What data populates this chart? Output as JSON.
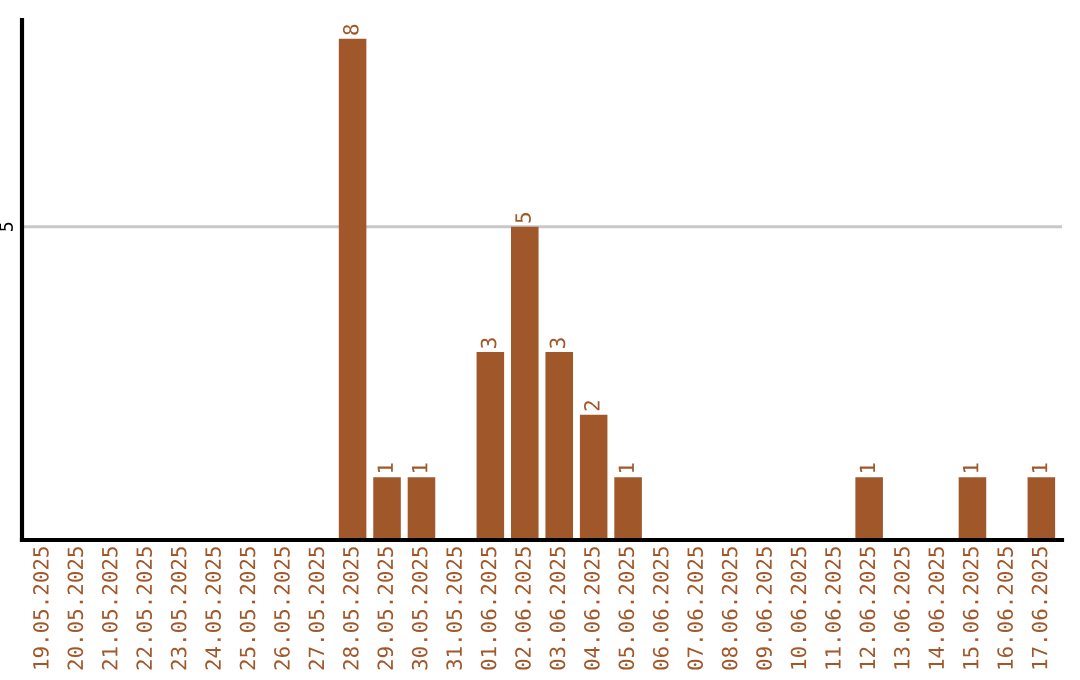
{
  "chart_data": {
    "type": "bar",
    "categories": [
      "19.05.2025",
      "20.05.2025",
      "21.05.2025",
      "22.05.2025",
      "23.05.2025",
      "24.05.2025",
      "25.05.2025",
      "26.05.2025",
      "27.05.2025",
      "28.05.2025",
      "29.05.2025",
      "30.05.2025",
      "31.05.2025",
      "01.06.2025",
      "02.06.2025",
      "03.06.2025",
      "04.06.2025",
      "05.06.2025",
      "06.06.2025",
      "07.06.2025",
      "08.06.2025",
      "09.06.2025",
      "10.06.2025",
      "11.06.2025",
      "12.06.2025",
      "13.06.2025",
      "14.06.2025",
      "15.06.2025",
      "16.06.2025",
      "17.06.2025"
    ],
    "values": [
      0,
      0,
      0,
      0,
      0,
      0,
      0,
      0,
      0,
      8,
      1,
      1,
      0,
      3,
      5,
      3,
      2,
      1,
      0,
      0,
      0,
      0,
      0,
      0,
      1,
      0,
      0,
      1,
      0,
      1
    ],
    "value_labels": [
      null,
      null,
      null,
      null,
      null,
      null,
      null,
      null,
      null,
      "8",
      "1",
      "1",
      null,
      "3",
      "5",
      "3",
      "2",
      "1",
      null,
      null,
      null,
      null,
      null,
      null,
      "1",
      null,
      null,
      "1",
      null,
      "1"
    ],
    "color": "#a0572a",
    "ylim": [
      0,
      8.3
    ],
    "yticks": [
      5
    ],
    "grid": "y"
  }
}
